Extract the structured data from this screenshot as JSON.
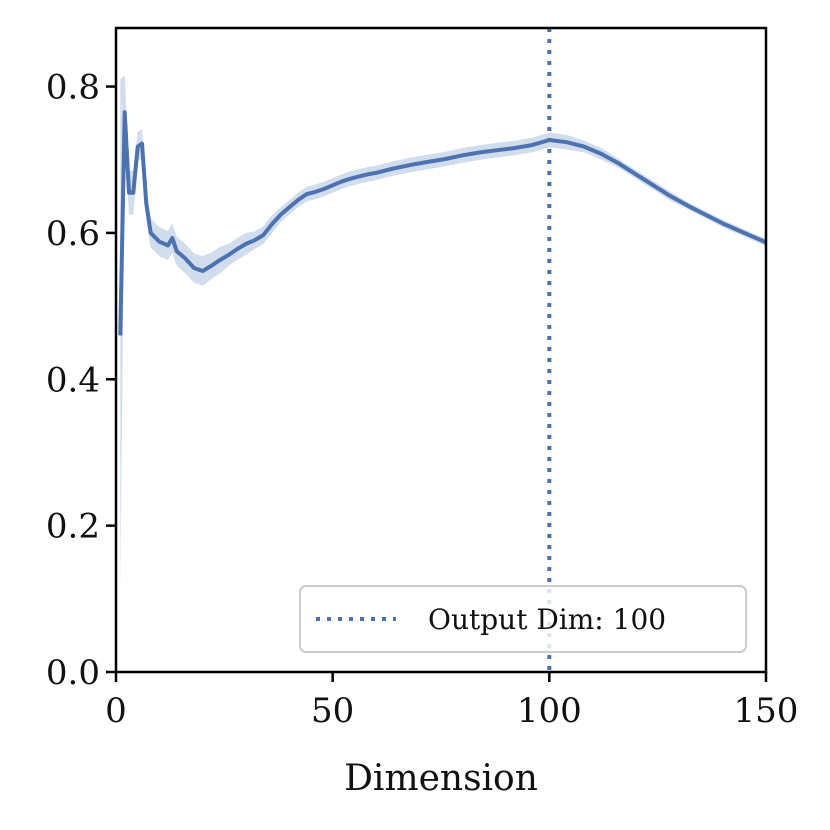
{
  "chart_data": {
    "type": "line",
    "title": "",
    "xlabel": "Dimension",
    "ylabel": "",
    "xlim": [
      0,
      150
    ],
    "ylim": [
      0,
      0.88
    ],
    "x_ticks": [
      0,
      50,
      100,
      150
    ],
    "x_tick_labels": [
      "0",
      "50",
      "100",
      "150"
    ],
    "y_ticks": [
      0.0,
      0.2,
      0.4,
      0.6,
      0.8
    ],
    "y_tick_labels": [
      "0.0",
      "0.2",
      "0.4",
      "0.6",
      "0.8"
    ],
    "grid": false,
    "colors": {
      "line": "#4c72b0",
      "band": "#c9d6ea"
    },
    "series": [
      {
        "x": [
          1,
          2,
          3,
          4,
          5,
          6,
          7,
          8,
          10,
          12,
          13,
          14,
          16,
          18,
          20,
          22,
          24,
          26,
          28,
          30,
          32,
          34,
          36,
          38,
          40,
          42,
          44,
          46,
          48,
          50,
          52,
          54,
          56,
          58,
          60,
          64,
          68,
          72,
          76,
          80,
          84,
          88,
          92,
          96,
          100,
          104,
          108,
          112,
          116,
          120,
          124,
          128,
          132,
          136,
          140,
          145,
          150
        ],
        "values": [
          0.46,
          0.765,
          0.655,
          0.655,
          0.718,
          0.722,
          0.64,
          0.6,
          0.588,
          0.583,
          0.593,
          0.575,
          0.565,
          0.552,
          0.548,
          0.555,
          0.563,
          0.57,
          0.578,
          0.585,
          0.59,
          0.597,
          0.612,
          0.625,
          0.635,
          0.645,
          0.653,
          0.656,
          0.66,
          0.665,
          0.67,
          0.674,
          0.677,
          0.68,
          0.682,
          0.688,
          0.693,
          0.697,
          0.701,
          0.706,
          0.71,
          0.713,
          0.716,
          0.72,
          0.727,
          0.724,
          0.718,
          0.708,
          0.695,
          0.68,
          0.665,
          0.65,
          0.637,
          0.625,
          0.613,
          0.6,
          0.587
        ],
        "band_half_width": [
          0.35,
          0.05,
          0.03,
          0.03,
          0.02,
          0.02,
          0.02,
          0.02,
          0.02,
          0.02,
          0.02,
          0.02,
          0.02,
          0.02,
          0.02,
          0.018,
          0.018,
          0.015,
          0.015,
          0.015,
          0.012,
          0.012,
          0.012,
          0.01,
          0.01,
          0.01,
          0.01,
          0.01,
          0.01,
          0.01,
          0.01,
          0.01,
          0.01,
          0.01,
          0.01,
          0.01,
          0.01,
          0.01,
          0.01,
          0.01,
          0.01,
          0.01,
          0.01,
          0.01,
          0.01,
          0.01,
          0.008,
          0.008,
          0.006,
          0.006,
          0.006,
          0.006,
          0.005,
          0.005,
          0.005,
          0.005,
          0.005
        ]
      }
    ],
    "reference_line": {
      "x": 100,
      "style": "dotted",
      "label": "Output Dim: 100"
    },
    "legend": {
      "placement": "lower-right",
      "entries": [
        "Output Dim: 100"
      ]
    }
  }
}
